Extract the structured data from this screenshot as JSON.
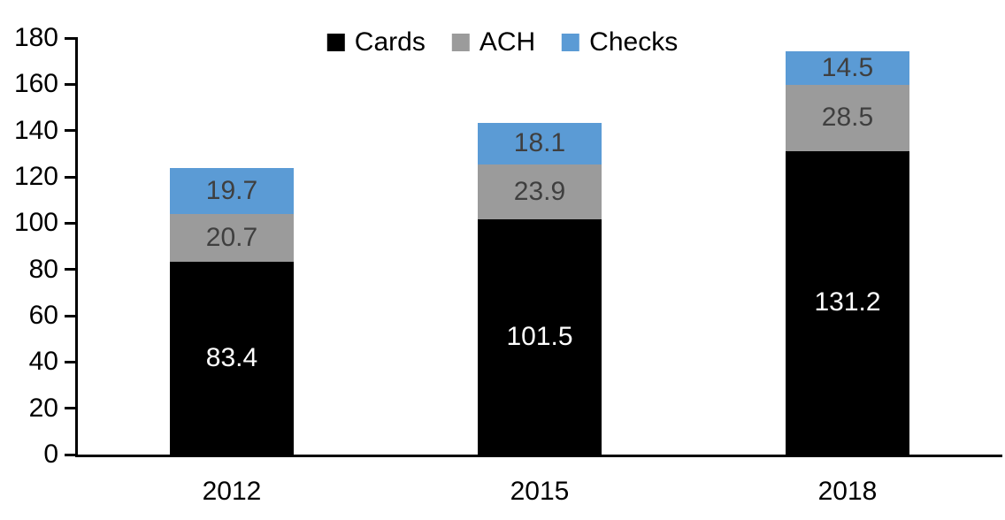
{
  "chart_data": {
    "type": "bar",
    "stacked": true,
    "title": "",
    "categories": [
      "2012",
      "2015",
      "2018"
    ],
    "series": [
      {
        "name": "Cards",
        "color": "#000000",
        "label_color": "#FFFFFF",
        "values": [
          83.4,
          101.5,
          131.2
        ]
      },
      {
        "name": "ACH",
        "color": "#9B9B9B",
        "label_color": "#3F3F3F",
        "values": [
          20.7,
          23.9,
          28.5
        ]
      },
      {
        "name": "Checks",
        "color": "#5B9BD5",
        "label_color": "#3F3F3F",
        "values": [
          19.7,
          18.1,
          14.5
        ]
      }
    ],
    "ylim": [
      0,
      180
    ],
    "yticks": [
      0,
      20,
      40,
      60,
      80,
      100,
      120,
      140,
      160,
      180
    ],
    "grid": false,
    "legend_position": "top-center",
    "axis_color": "#000000",
    "background": "#FFFFFF"
  }
}
